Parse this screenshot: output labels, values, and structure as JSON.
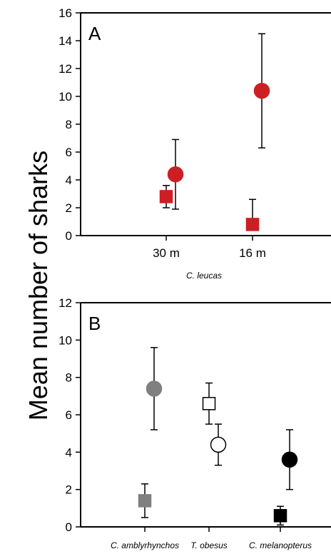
{
  "ylabel": "Mean number of sharks",
  "chart_data": [
    {
      "type": "scatter",
      "panel": "A",
      "xlabel": "C. leucas",
      "categories": [
        "30 m",
        "16 m"
      ],
      "ylim": [
        0,
        16
      ],
      "yticks": [
        0,
        2,
        4,
        6,
        8,
        10,
        12,
        14,
        16
      ],
      "grid": false,
      "series": [
        {
          "marker": "circle",
          "color": "#cc1f24",
          "fill": "#cc1f24",
          "values": [
            4.4,
            10.4
          ],
          "error_low": [
            1.9,
            6.3
          ],
          "error_high": [
            6.9,
            14.5
          ]
        },
        {
          "marker": "square",
          "color": "#cc1f24",
          "fill": "#cc1f24",
          "values": [
            2.8,
            0.8
          ],
          "error_low": [
            2.0,
            0.8
          ],
          "error_high": [
            3.6,
            2.6
          ]
        }
      ]
    },
    {
      "type": "scatter",
      "panel": "B",
      "xlabel": "",
      "categories": [
        "C. amblyrhynchos",
        "T. obesus",
        "C. melanopterus"
      ],
      "ylim": [
        0,
        12
      ],
      "yticks": [
        0,
        2,
        4,
        6,
        8,
        10,
        12
      ],
      "grid": false,
      "points": [
        {
          "category": 0,
          "marker": "circle",
          "fill": "#808080",
          "stroke": "#808080",
          "value": 7.4,
          "error_low": 5.2,
          "error_high": 9.6
        },
        {
          "category": 0,
          "marker": "square",
          "fill": "#808080",
          "stroke": "#808080",
          "value": 1.4,
          "error_low": 0.5,
          "error_high": 2.3
        },
        {
          "category": 1,
          "marker": "square",
          "fill": "#ffffff",
          "stroke": "#000000",
          "value": 6.6,
          "error_low": 5.5,
          "error_high": 7.7
        },
        {
          "category": 1,
          "marker": "circle",
          "fill": "#ffffff",
          "stroke": "#000000",
          "value": 4.4,
          "error_low": 3.3,
          "error_high": 5.5
        },
        {
          "category": 2,
          "marker": "circle",
          "fill": "#000000",
          "stroke": "#000000",
          "value": 3.6,
          "error_low": 2.0,
          "error_high": 5.2
        },
        {
          "category": 2,
          "marker": "square",
          "fill": "#000000",
          "stroke": "#000000",
          "value": 0.6,
          "error_low": 0.1,
          "error_high": 1.1
        }
      ]
    }
  ]
}
